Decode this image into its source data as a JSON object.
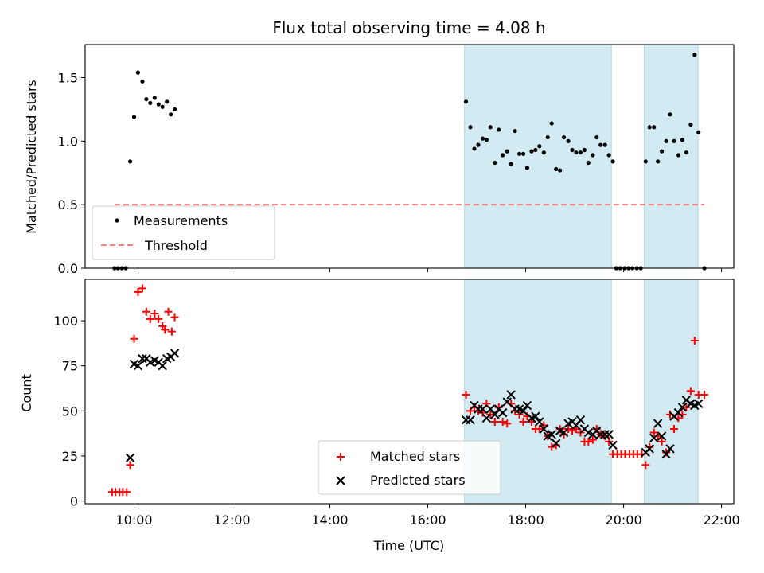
{
  "title": "Flux total observing time = 4.08 h",
  "colors": {
    "shade": "#add8e6",
    "measurement": "#000000",
    "threshold": "#ff7f7f",
    "matched": "#ff0000",
    "predicted": "#000000"
  },
  "chart_data": [
    {
      "type": "scatter",
      "ylabel": "Matched/Predicted stars",
      "xlim": [
        9.0,
        22.25
      ],
      "ylim": [
        0,
        1.76
      ],
      "yticks": [
        0.0,
        0.5,
        1.0,
        1.5
      ],
      "ytick_labels": [
        "0.0",
        "0.5",
        "1.0",
        "1.5"
      ],
      "legend_position": "lower-left",
      "shaded_spans": [
        [
          16.75,
          19.75
        ],
        [
          20.42,
          21.52
        ]
      ],
      "threshold": {
        "name": "Threshold",
        "value": 0.5,
        "x_range": [
          9.6,
          21.65
        ]
      },
      "series": [
        {
          "name": "Measurements",
          "points": [
            [
              9.6,
              0
            ],
            [
              9.67,
              0
            ],
            [
              9.75,
              0
            ],
            [
              9.83,
              0
            ],
            [
              9.92,
              0.84
            ],
            [
              10.0,
              1.19
            ],
            [
              10.08,
              1.54
            ],
            [
              10.17,
              1.47
            ],
            [
              10.25,
              1.33
            ],
            [
              10.33,
              1.3
            ],
            [
              10.42,
              1.34
            ],
            [
              10.5,
              1.29
            ],
            [
              10.58,
              1.27
            ],
            [
              10.67,
              1.31
            ],
            [
              10.75,
              1.21
            ],
            [
              10.83,
              1.25
            ],
            [
              16.78,
              1.31
            ],
            [
              16.87,
              1.11
            ],
            [
              16.95,
              0.94
            ],
            [
              17.03,
              0.97
            ],
            [
              17.12,
              1.02
            ],
            [
              17.2,
              1.01
            ],
            [
              17.28,
              1.11
            ],
            [
              17.37,
              0.83
            ],
            [
              17.45,
              1.09
            ],
            [
              17.53,
              0.89
            ],
            [
              17.62,
              0.92
            ],
            [
              17.7,
              0.82
            ],
            [
              17.78,
              1.08
            ],
            [
              17.87,
              0.9
            ],
            [
              17.95,
              0.9
            ],
            [
              18.03,
              0.79
            ],
            [
              18.12,
              0.92
            ],
            [
              18.2,
              0.93
            ],
            [
              18.28,
              0.96
            ],
            [
              18.37,
              0.91
            ],
            [
              18.45,
              1.03
            ],
            [
              18.53,
              1.14
            ],
            [
              18.62,
              0.78
            ],
            [
              18.7,
              0.77
            ],
            [
              18.78,
              1.03
            ],
            [
              18.87,
              1.0
            ],
            [
              18.95,
              0.93
            ],
            [
              19.03,
              0.91
            ],
            [
              19.12,
              0.91
            ],
            [
              19.2,
              0.93
            ],
            [
              19.28,
              0.83
            ],
            [
              19.37,
              0.89
            ],
            [
              19.45,
              1.03
            ],
            [
              19.53,
              0.97
            ],
            [
              19.62,
              0.97
            ],
            [
              19.7,
              0.89
            ],
            [
              19.78,
              0.84
            ],
            [
              19.85,
              0
            ],
            [
              19.93,
              0
            ],
            [
              20.02,
              0
            ],
            [
              20.1,
              0
            ],
            [
              20.18,
              0
            ],
            [
              20.27,
              0
            ],
            [
              20.35,
              0
            ],
            [
              20.45,
              0.84
            ],
            [
              20.53,
              1.11
            ],
            [
              20.62,
              1.11
            ],
            [
              20.7,
              0.84
            ],
            [
              20.78,
              0.92
            ],
            [
              20.87,
              1.0
            ],
            [
              20.95,
              1.21
            ],
            [
              21.03,
              1.0
            ],
            [
              21.12,
              0.89
            ],
            [
              21.2,
              1.01
            ],
            [
              21.28,
              0.91
            ],
            [
              21.37,
              1.13
            ],
            [
              21.45,
              1.68
            ],
            [
              21.53,
              1.07
            ],
            [
              21.65,
              0
            ]
          ]
        }
      ]
    },
    {
      "type": "scatter",
      "xlabel": "Time (UTC)",
      "ylabel": "Count",
      "xlim": [
        9.0,
        22.25
      ],
      "ylim": [
        -1.5,
        123
      ],
      "yticks": [
        0,
        25,
        50,
        75,
        100
      ],
      "ytick_labels": [
        "0",
        "25",
        "50",
        "75",
        "100"
      ],
      "xticks": [
        10,
        12,
        14,
        16,
        18,
        20,
        22
      ],
      "xtick_labels": [
        "10:00",
        "12:00",
        "14:00",
        "16:00",
        "18:00",
        "20:00",
        "22:00"
      ],
      "legend_position": "lower-center",
      "shaded_spans": [
        [
          16.75,
          19.75
        ],
        [
          20.42,
          21.52
        ]
      ],
      "series": [
        {
          "name": "Matched stars",
          "points": [
            [
              9.55,
              5
            ],
            [
              9.62,
              5
            ],
            [
              9.7,
              5
            ],
            [
              9.77,
              5
            ],
            [
              9.85,
              5
            ],
            [
              9.92,
              20
            ],
            [
              10.0,
              90
            ],
            [
              10.08,
              116
            ],
            [
              10.17,
              118
            ],
            [
              10.25,
              105
            ],
            [
              10.33,
              101
            ],
            [
              10.42,
              104
            ],
            [
              10.5,
              101
            ],
            [
              10.58,
              97
            ],
            [
              10.63,
              95
            ],
            [
              10.7,
              105
            ],
            [
              10.77,
              94
            ],
            [
              10.83,
              102
            ],
            [
              16.78,
              59
            ],
            [
              16.87,
              50
            ],
            [
              16.95,
              52
            ],
            [
              17.03,
              50
            ],
            [
              17.12,
              49
            ],
            [
              17.2,
              54
            ],
            [
              17.28,
              48
            ],
            [
              17.37,
              44
            ],
            [
              17.45,
              52
            ],
            [
              17.53,
              44
            ],
            [
              17.62,
              43
            ],
            [
              17.7,
              54
            ],
            [
              17.78,
              50
            ],
            [
              17.87,
              48
            ],
            [
              17.95,
              44
            ],
            [
              18.03,
              47
            ],
            [
              18.12,
              44
            ],
            [
              18.2,
              40
            ],
            [
              18.28,
              40
            ],
            [
              18.37,
              42
            ],
            [
              18.45,
              36
            ],
            [
              18.53,
              30
            ],
            [
              18.62,
              31
            ],
            [
              18.7,
              40
            ],
            [
              18.78,
              37
            ],
            [
              18.87,
              40
            ],
            [
              18.95,
              39
            ],
            [
              19.03,
              40
            ],
            [
              19.12,
              38
            ],
            [
              19.2,
              33
            ],
            [
              19.28,
              33
            ],
            [
              19.37,
              34
            ],
            [
              19.45,
              40
            ],
            [
              19.53,
              37
            ],
            [
              19.62,
              36
            ],
            [
              19.7,
              33
            ],
            [
              19.78,
              26
            ],
            [
              19.87,
              26
            ],
            [
              19.95,
              26
            ],
            [
              20.03,
              26
            ],
            [
              20.12,
              26
            ],
            [
              20.2,
              26
            ],
            [
              20.28,
              26
            ],
            [
              20.37,
              26
            ],
            [
              20.45,
              20
            ],
            [
              20.53,
              30
            ],
            [
              20.62,
              38
            ],
            [
              20.7,
              36
            ],
            [
              20.78,
              33
            ],
            [
              20.87,
              27
            ],
            [
              20.95,
              48
            ],
            [
              21.03,
              40
            ],
            [
              21.12,
              46
            ],
            [
              21.2,
              48
            ],
            [
              21.28,
              52
            ],
            [
              21.37,
              61
            ],
            [
              21.45,
              89
            ],
            [
              21.53,
              59
            ],
            [
              21.65,
              59
            ]
          ]
        },
        {
          "name": "Predicted stars",
          "points": [
            [
              9.92,
              24
            ],
            [
              10.0,
              76
            ],
            [
              10.08,
              75
            ],
            [
              10.17,
              79
            ],
            [
              10.25,
              79
            ],
            [
              10.33,
              77
            ],
            [
              10.42,
              78
            ],
            [
              10.5,
              77
            ],
            [
              10.58,
              75
            ],
            [
              10.67,
              79
            ],
            [
              10.75,
              80
            ],
            [
              10.83,
              82
            ],
            [
              16.78,
              45
            ],
            [
              16.87,
              45
            ],
            [
              16.95,
              53
            ],
            [
              17.03,
              51
            ],
            [
              17.12,
              51
            ],
            [
              17.2,
              46
            ],
            [
              17.28,
              51
            ],
            [
              17.37,
              48
            ],
            [
              17.45,
              51
            ],
            [
              17.53,
              49
            ],
            [
              17.62,
              55
            ],
            [
              17.7,
              59
            ],
            [
              17.78,
              51
            ],
            [
              17.87,
              51
            ],
            [
              17.95,
              50
            ],
            [
              18.03,
              53
            ],
            [
              18.12,
              46
            ],
            [
              18.2,
              47
            ],
            [
              18.28,
              44
            ],
            [
              18.37,
              40
            ],
            [
              18.45,
              36
            ],
            [
              18.53,
              37
            ],
            [
              18.62,
              32
            ],
            [
              18.7,
              39
            ],
            [
              18.78,
              38
            ],
            [
              18.87,
              43
            ],
            [
              18.95,
              44
            ],
            [
              19.03,
              42
            ],
            [
              19.12,
              45
            ],
            [
              19.2,
              40
            ],
            [
              19.28,
              38
            ],
            [
              19.37,
              37
            ],
            [
              19.45,
              39
            ],
            [
              19.53,
              37
            ],
            [
              19.62,
              37
            ],
            [
              19.7,
              37
            ],
            [
              19.78,
              31
            ],
            [
              20.45,
              27
            ],
            [
              20.53,
              29
            ],
            [
              20.62,
              35
            ],
            [
              20.7,
              43
            ],
            [
              20.78,
              36
            ],
            [
              20.87,
              26
            ],
            [
              20.95,
              29
            ],
            [
              21.03,
              47
            ],
            [
              21.12,
              49
            ],
            [
              21.2,
              52
            ],
            [
              21.28,
              56
            ],
            [
              21.37,
              54
            ],
            [
              21.45,
              53
            ],
            [
              21.53,
              54
            ]
          ]
        }
      ]
    }
  ]
}
